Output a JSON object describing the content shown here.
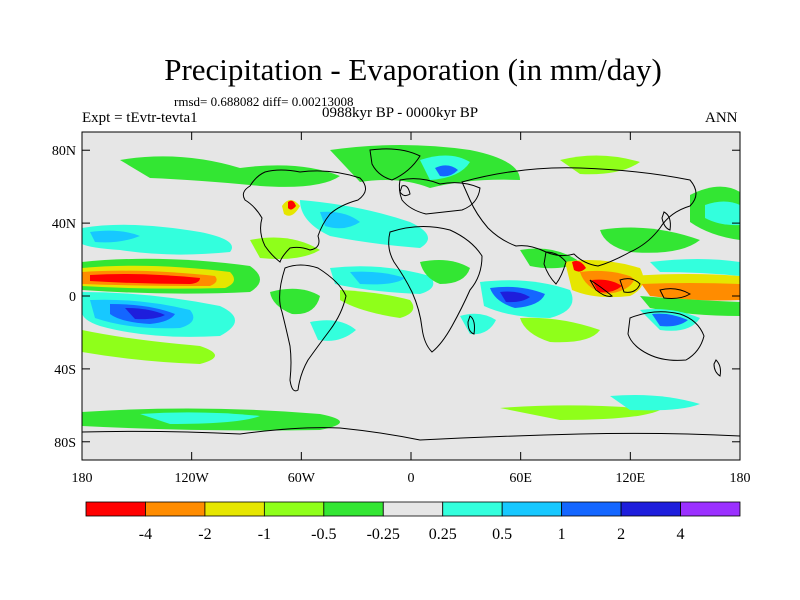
{
  "title": "Precipitation - Evaporation (in mm/day)",
  "stats": "rmsd= 0.688082 diff= 0.00213008",
  "left_label": "Expt = tEvtr-tevta1",
  "center_label": "0988kyr BP - 0000kyr BP",
  "right_label": "ANN",
  "lat_ticks": [
    {
      "label": "80N",
      "lat": 80
    },
    {
      "label": "40N",
      "lat": 40
    },
    {
      "label": "0",
      "lat": 0
    },
    {
      "label": "40S",
      "lat": -40
    },
    {
      "label": "80S",
      "lat": -80
    }
  ],
  "lon_ticks": [
    {
      "label": "180",
      "lon": -180
    },
    {
      "label": "120W",
      "lon": -120
    },
    {
      "label": "60W",
      "lon": -60
    },
    {
      "label": "0",
      "lon": 0
    },
    {
      "label": "60E",
      "lon": 60
    },
    {
      "label": "120E",
      "lon": 120
    },
    {
      "label": "180",
      "lon": 180
    }
  ],
  "colorbar": {
    "colors": [
      "#ff0000",
      "#ff8c00",
      "#e6e600",
      "#8fff1a",
      "#33e633",
      "#e6e6e6",
      "#33ffdd",
      "#17c8ff",
      "#1466ff",
      "#1e1edc",
      "#9b30ff"
    ],
    "labels": [
      "-4",
      "-2",
      "-1",
      "-0.5",
      "-0.25",
      "0.25",
      "0.5",
      "1",
      "2",
      "4"
    ]
  },
  "colors": {
    "background": "#e6e6e6",
    "coast": "#000000"
  }
}
